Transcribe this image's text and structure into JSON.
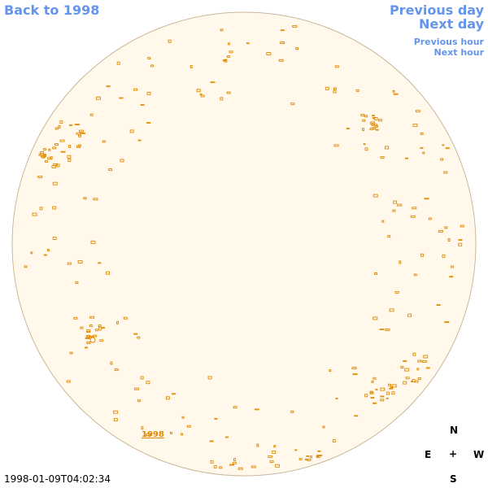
{
  "nav": {
    "back_label": "Back to 1998",
    "previous_day_label": "Previous day",
    "next_day_label": "Next day",
    "previous_hour_label": "Previous hour",
    "next_hour_label": "Next hour"
  },
  "compass": {
    "north": "N",
    "east": "E",
    "center": "+",
    "west": "W",
    "south": "S"
  },
  "timestamp": "1998-01-09T04:02:34",
  "disk_year_label": "1998",
  "colors": {
    "link": "#6495ed",
    "disk_fill": "#fff8eb",
    "disk_outline": "#c8b89a",
    "feature": "#e08a00"
  }
}
